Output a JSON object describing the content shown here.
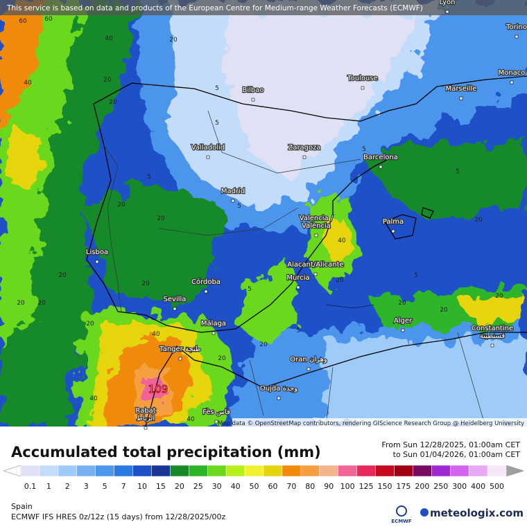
{
  "map": {
    "banner": "This service is based on data and products of the European Centre for Medium-range Weather Forecasts (ECMWF)",
    "attribution": "Map data © OpenStreetMap contributors, rendering GIScience Research Group @ Heidelberg University",
    "max_label": "109",
    "cities": [
      {
        "lines": [
          "Lyon"
        ]
      },
      {
        "lines": [
          "Torino"
        ]
      },
      {
        "lines": [
          "Monaco"
        ]
      },
      {
        "lines": [
          "Toulouse"
        ]
      },
      {
        "lines": [
          "Marseille"
        ]
      },
      {
        "lines": [
          "Bilbao"
        ]
      },
      {
        "lines": [
          "Valladolid"
        ]
      },
      {
        "lines": [
          "Zaragoza"
        ]
      },
      {
        "lines": [
          "Barcelona"
        ]
      },
      {
        "lines": [
          "Madrid"
        ]
      },
      {
        "lines": [
          "Valencia /",
          "València"
        ]
      },
      {
        "lines": [
          "Palma"
        ]
      },
      {
        "lines": [
          "Lisboa"
        ]
      },
      {
        "lines": [
          "Córdoba"
        ]
      },
      {
        "lines": [
          "Alacant/Alicante"
        ]
      },
      {
        "lines": [
          "Murcia"
        ]
      },
      {
        "lines": [
          "Sevilla"
        ]
      },
      {
        "lines": [
          "Málaga"
        ]
      },
      {
        "lines": [
          "Alger"
        ]
      },
      {
        "lines": [
          "Constantine",
          "قسنطينة"
        ]
      },
      {
        "lines": [
          "Tanger طنجة"
        ]
      },
      {
        "lines": [
          "Oran وهران"
        ]
      },
      {
        "lines": [
          "Oujda وجدة"
        ]
      },
      {
        "lines": [
          "Rabat",
          "الرباط"
        ]
      },
      {
        "lines": [
          "Fès فاس"
        ]
      }
    ],
    "contour_labels": [
      60,
      60,
      40,
      40,
      20,
      20,
      20,
      5,
      5,
      5,
      5,
      5,
      20,
      20,
      20,
      20,
      40,
      20,
      20,
      20,
      40,
      40,
      40,
      20,
      20,
      5,
      5,
      5,
      20,
      20,
      20,
      20,
      20,
      5
    ]
  },
  "legend": {
    "title": "Accumulated total precipitation (mm)",
    "from": "From Sun 12/28/2025, 01:00am CET",
    "to": "to Sun 01/04/2026, 01:00am CET",
    "levels": [
      0.1,
      1,
      2,
      3,
      5,
      7,
      10,
      15,
      20,
      25,
      30,
      40,
      50,
      60,
      70,
      80,
      90,
      100,
      125,
      150,
      175,
      200,
      250,
      300,
      400,
      500
    ],
    "colors": [
      "#e1e1f5",
      "#c3dcfa",
      "#9fcbf8",
      "#78b2f2",
      "#4c96ec",
      "#2a78e2",
      "#1e50c8",
      "#1a3596",
      "#17892a",
      "#2db52a",
      "#6bd81e",
      "#b9f01c",
      "#f3f230",
      "#e6d40e",
      "#f08a0a",
      "#f5a040",
      "#f5b48c",
      "#f06496",
      "#e6285a",
      "#c80a1e",
      "#a00014",
      "#780a64",
      "#a028d2",
      "#d264f0",
      "#e8aaf5",
      "#f5e6fa"
    ],
    "under_color": "#ffffff",
    "over_color": "#a0a0a0",
    "region": "Spain",
    "model": "ECMWF IFS HRES 0z/12z (15 days) from  12/28/2025/00z",
    "ecmwf": "ECMWF",
    "brand": "meteologix.com"
  }
}
